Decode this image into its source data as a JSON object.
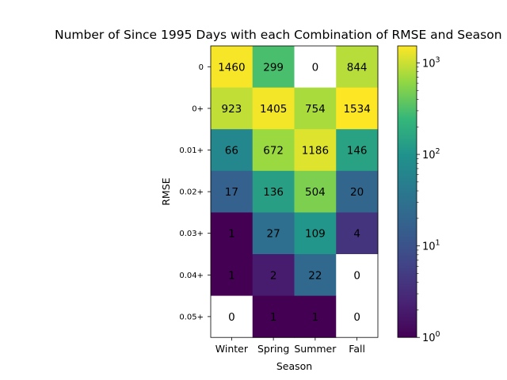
{
  "chart_data": {
    "type": "heatmap",
    "title": "Number of Since 1995 Days with each Combination of RMSE and Season",
    "xlabel": "Season",
    "ylabel": "RMSE",
    "x_categories": [
      "Winter",
      "Spring",
      "Summer",
      "Fall"
    ],
    "y_categories": [
      "0",
      "0+",
      "0.01+",
      "0.02+",
      "0.03+",
      "0.04+",
      "0.05+"
    ],
    "values": [
      [
        1460,
        299,
        0,
        844
      ],
      [
        923,
        1405,
        754,
        1534
      ],
      [
        66,
        672,
        1186,
        146
      ],
      [
        17,
        136,
        504,
        20
      ],
      [
        1,
        27,
        109,
        4
      ],
      [
        1,
        2,
        22,
        0
      ],
      [
        0,
        1,
        1,
        0
      ]
    ],
    "color_scale": "log",
    "colormap": "viridis",
    "zero_color": "#ffffff",
    "colorbar": {
      "range": [
        1,
        1534
      ],
      "tick_values": [
        1,
        10,
        100,
        1000
      ],
      "tick_base": "10",
      "tick_exponents": [
        "0",
        "1",
        "2",
        "3"
      ]
    }
  }
}
